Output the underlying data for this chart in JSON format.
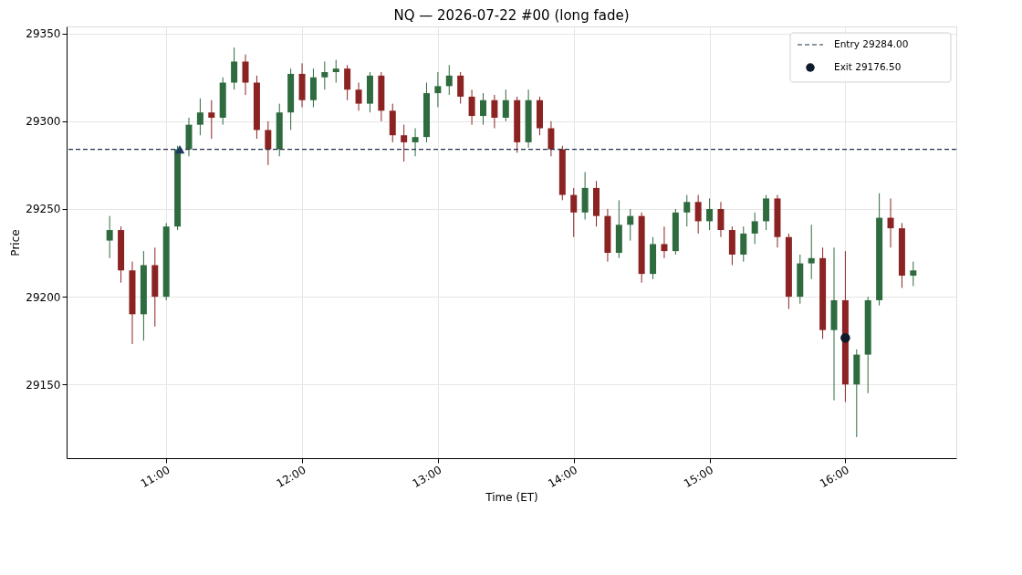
{
  "chart_data": {
    "type": "candlestick",
    "title": "NQ — 2026-07-22 #00  (long fade)",
    "xlabel": "Time (ET)",
    "ylabel": "Price",
    "x": [
      "2026-07-22T10:35",
      "2026-07-22T10:40",
      "2026-07-22T10:45",
      "2026-07-22T10:50",
      "2026-07-22T10:55",
      "2026-07-22T11:00",
      "2026-07-22T11:05",
      "2026-07-22T11:10",
      "2026-07-22T11:15",
      "2026-07-22T11:20",
      "2026-07-22T11:25",
      "2026-07-22T11:30",
      "2026-07-22T11:35",
      "2026-07-22T11:40",
      "2026-07-22T11:45",
      "2026-07-22T11:50",
      "2026-07-22T11:55",
      "2026-07-22T12:00",
      "2026-07-22T12:05",
      "2026-07-22T12:10",
      "2026-07-22T12:15",
      "2026-07-22T12:20",
      "2026-07-22T12:25",
      "2026-07-22T12:30",
      "2026-07-22T12:35",
      "2026-07-22T12:40",
      "2026-07-22T12:45",
      "2026-07-22T12:50",
      "2026-07-22T12:55",
      "2026-07-22T13:00",
      "2026-07-22T13:05",
      "2026-07-22T13:10",
      "2026-07-22T13:15",
      "2026-07-22T13:20",
      "2026-07-22T13:25",
      "2026-07-22T13:30",
      "2026-07-22T13:35",
      "2026-07-22T13:40",
      "2026-07-22T13:45",
      "2026-07-22T13:50",
      "2026-07-22T13:55",
      "2026-07-22T14:00",
      "2026-07-22T14:05",
      "2026-07-22T14:10",
      "2026-07-22T14:15",
      "2026-07-22T14:20",
      "2026-07-22T14:25",
      "2026-07-22T14:30",
      "2026-07-22T14:35",
      "2026-07-22T14:40",
      "2026-07-22T14:45",
      "2026-07-22T14:50",
      "2026-07-22T14:55",
      "2026-07-22T15:00",
      "2026-07-22T15:05",
      "2026-07-22T15:10",
      "2026-07-22T15:15",
      "2026-07-22T15:20",
      "2026-07-22T15:25",
      "2026-07-22T15:30",
      "2026-07-22T15:35",
      "2026-07-22T15:40",
      "2026-07-22T15:45",
      "2026-07-22T15:50",
      "2026-07-22T15:55",
      "2026-07-22T16:00",
      "2026-07-22T16:05",
      "2026-07-22T16:10",
      "2026-07-22T16:15",
      "2026-07-22T16:20",
      "2026-07-22T16:25",
      "2026-07-22T16:30"
    ],
    "ohlc": [
      [
        29232,
        29246,
        29222,
        29238
      ],
      [
        29238,
        29240,
        29208,
        29215
      ],
      [
        29215,
        29220,
        29173,
        29190
      ],
      [
        29190,
        29226,
        29175,
        29218
      ],
      [
        29218,
        29228,
        29183,
        29200
      ],
      [
        29200,
        29242,
        29198,
        29240
      ],
      [
        29240,
        29286,
        29238,
        29284
      ],
      [
        29284,
        29302,
        29280,
        29298
      ],
      [
        29298,
        29313,
        29292,
        29305
      ],
      [
        29305,
        29312,
        29290,
        29302
      ],
      [
        29302,
        29325,
        29298,
        29322
      ],
      [
        29322,
        29342,
        29318,
        29334
      ],
      [
        29334,
        29338,
        29315,
        29322
      ],
      [
        29322,
        29326,
        29290,
        29295
      ],
      [
        29295,
        29300,
        29275,
        29284
      ],
      [
        29284,
        29310,
        29280,
        29305
      ],
      [
        29305,
        29330,
        29295,
        29327
      ],
      [
        29327,
        29333,
        29308,
        29312
      ],
      [
        29312,
        29330,
        29308,
        29325
      ],
      [
        29325,
        29334,
        29318,
        29328
      ],
      [
        29328,
        29335,
        29322,
        29330
      ],
      [
        29330,
        29332,
        29312,
        29318
      ],
      [
        29318,
        29322,
        29306,
        29310
      ],
      [
        29310,
        29328,
        29305,
        29326
      ],
      [
        29326,
        29328,
        29300,
        29306
      ],
      [
        29306,
        29310,
        29288,
        29292
      ],
      [
        29292,
        29298,
        29277,
        29288
      ],
      [
        29288,
        29296,
        29280,
        29291
      ],
      [
        29291,
        29322,
        29288,
        29316
      ],
      [
        29316,
        29328,
        29308,
        29320
      ],
      [
        29320,
        29332,
        29315,
        29326
      ],
      [
        29326,
        29328,
        29310,
        29314
      ],
      [
        29314,
        29318,
        29298,
        29303
      ],
      [
        29303,
        29316,
        29298,
        29312
      ],
      [
        29312,
        29315,
        29296,
        29302
      ],
      [
        29302,
        29318,
        29300,
        29312
      ],
      [
        29312,
        29314,
        29282,
        29288
      ],
      [
        29288,
        29318,
        29285,
        29312
      ],
      [
        29312,
        29314,
        29292,
        29296
      ],
      [
        29296,
        29300,
        29280,
        29284
      ],
      [
        29284,
        29286,
        29255,
        29258
      ],
      [
        29258,
        29262,
        29234,
        29248
      ],
      [
        29248,
        29271,
        29244,
        29262
      ],
      [
        29262,
        29266,
        29240,
        29246
      ],
      [
        29246,
        29250,
        29220,
        29225
      ],
      [
        29225,
        29255,
        29222,
        29241
      ],
      [
        29241,
        29250,
        29232,
        29246
      ],
      [
        29246,
        29248,
        29208,
        29213
      ],
      [
        29213,
        29234,
        29210,
        29230
      ],
      [
        29230,
        29240,
        29222,
        29226
      ],
      [
        29226,
        29250,
        29224,
        29248
      ],
      [
        29248,
        29258,
        29240,
        29254
      ],
      [
        29254,
        29258,
        29236,
        29243
      ],
      [
        29243,
        29256,
        29238,
        29250
      ],
      [
        29250,
        29254,
        29234,
        29238
      ],
      [
        29238,
        29240,
        29218,
        29224
      ],
      [
        29224,
        29240,
        29220,
        29236
      ],
      [
        29236,
        29248,
        29230,
        29243
      ],
      [
        29243,
        29258,
        29238,
        29256
      ],
      [
        29256,
        29258,
        29228,
        29234
      ],
      [
        29234,
        29236,
        29193,
        29200
      ],
      [
        29200,
        29224,
        29196,
        29219
      ],
      [
        29219,
        29241,
        29210,
        29222
      ],
      [
        29222,
        29228,
        29176,
        29181
      ],
      [
        29181,
        29228,
        29141,
        29198
      ],
      [
        29198,
        29226,
        29140,
        29150
      ],
      [
        29150,
        29170,
        29120,
        29167
      ],
      [
        29167,
        29200,
        29145,
        29198
      ],
      [
        29198,
        29259,
        29195,
        29245
      ],
      [
        29245,
        29256,
        29228,
        29239
      ],
      [
        29239,
        29242,
        29205,
        29212
      ],
      [
        29212,
        29220,
        29206,
        29215
      ]
    ],
    "colors": [
      "#2e6b3f",
      "#8c2323",
      "#8c2323",
      "#2e6b3f",
      "#8c2323",
      "#2e6b3f",
      "#2e6b3f",
      "#2e6b3f",
      "#2e6b3f",
      "#8c2323",
      "#2e6b3f",
      "#2e6b3f",
      "#8c2323",
      "#8c2323",
      "#8c2323",
      "#2e6b3f",
      "#2e6b3f",
      "#8c2323",
      "#2e6b3f",
      "#2e6b3f",
      "#2e6b3f",
      "#8c2323",
      "#8c2323",
      "#2e6b3f",
      "#8c2323",
      "#8c2323",
      "#8c2323",
      "#2e6b3f",
      "#2e6b3f",
      "#2e6b3f",
      "#2e6b3f",
      "#8c2323",
      "#8c2323",
      "#2e6b3f",
      "#8c2323",
      "#2e6b3f",
      "#8c2323",
      "#2e6b3f",
      "#8c2323",
      "#8c2323",
      "#8c2323",
      "#8c2323",
      "#2e6b3f",
      "#8c2323",
      "#8c2323",
      "#2e6b3f",
      "#2e6b3f",
      "#8c2323",
      "#2e6b3f",
      "#8c2323",
      "#2e6b3f",
      "#2e6b3f",
      "#8c2323",
      "#2e6b3f",
      "#8c2323",
      "#8c2323",
      "#2e6b3f",
      "#2e6b3f",
      "#2e6b3f",
      "#8c2323",
      "#8c2323",
      "#2e6b3f",
      "#2e6b3f",
      "#8c2323",
      "#2e6b3f",
      "#8c2323",
      "#2e6b3f",
      "#2e6b3f",
      "#2e6b3f",
      "#8c2323",
      "#8c2323",
      "#2e6b3f"
    ],
    "series": [
      {
        "type": "scatter",
        "x": [
          "2026-07-22T11:06"
        ],
        "values": [
          29284
        ],
        "color": "#1f3a5f",
        "marker": "triangle"
      },
      {
        "type": "scatter",
        "name": "Exit 29176.50",
        "x": [
          "2026-07-22T16:00"
        ],
        "values": [
          29176.5
        ],
        "color": "#0d1b2a",
        "marker": "circle"
      }
    ],
    "ref_lines": [
      {
        "axis": "y",
        "value": 29284,
        "label": "Entry 29284.00",
        "color": "#1f2f4a",
        "line_style": "dashed"
      }
    ],
    "xlim": [
      "2026-07-22T10:18",
      "2026-07-22T16:47"
    ],
    "xticks": [
      {
        "value": "2026-07-22T11:00",
        "label": "11:00"
      },
      {
        "value": "2026-07-22T12:00",
        "label": "12:00"
      },
      {
        "value": "2026-07-22T13:00",
        "label": "13:00"
      },
      {
        "value": "2026-07-22T14:00",
        "label": "14:00"
      },
      {
        "value": "2026-07-22T15:00",
        "label": "15:00"
      },
      {
        "value": "2026-07-22T16:00",
        "label": "16:00"
      }
    ],
    "ylim": [
      29108,
      29354
    ],
    "yticks": [
      29150,
      29200,
      29250,
      29300,
      29350
    ],
    "grid": true,
    "legend": "top right"
  }
}
